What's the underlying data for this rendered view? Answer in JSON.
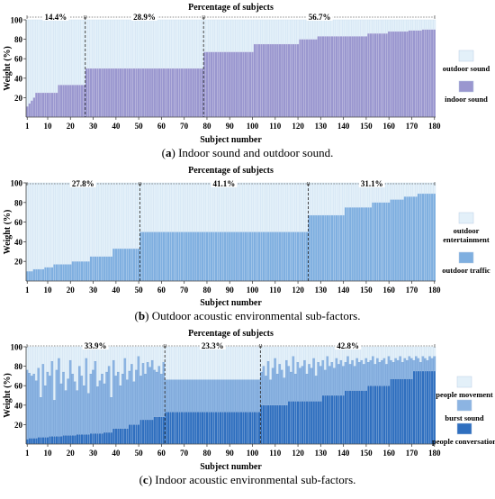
{
  "chart_data": [
    {
      "type": "bar",
      "stacked": true,
      "panel": "a",
      "caption_letter": "a",
      "caption_text": " Indoor sound and outdoor sound.",
      "title": "Percentage of subjects",
      "xlabel": "Subject number",
      "ylabel": "Weight (%)",
      "xlim": [
        1,
        180
      ],
      "ylim": [
        0,
        100
      ],
      "xticks": [
        1,
        10,
        20,
        30,
        40,
        50,
        60,
        70,
        80,
        90,
        100,
        110,
        120,
        130,
        140,
        150,
        160,
        170,
        180
      ],
      "yticks": [
        20,
        40,
        60,
        80,
        100
      ],
      "groups": [
        {
          "label": "14.4%",
          "start": 1,
          "end": 26
        },
        {
          "label": "28.9%",
          "start": 27,
          "end": 78
        },
        {
          "label": "56.7%",
          "start": 79,
          "end": 180
        }
      ],
      "series": [
        {
          "name": "outdoor sound",
          "color": "#e3f0f9",
          "role": "remainder"
        },
        {
          "name": "indoor sound",
          "color": "#9a97cf",
          "role": "base",
          "segments": [
            [
              1,
              1,
              11
            ],
            [
              2,
              2,
              14
            ],
            [
              3,
              3,
              17
            ],
            [
              4,
              4,
              20
            ],
            [
              5,
              10,
              25
            ],
            [
              11,
              14,
              25
            ],
            [
              15,
              26,
              33
            ],
            [
              27,
              78,
              50
            ],
            [
              79,
              100,
              67
            ],
            [
              101,
              120,
              75
            ],
            [
              121,
              128,
              80
            ],
            [
              129,
              134,
              83
            ],
            [
              135,
              150,
              83
            ],
            [
              151,
              159,
              86
            ],
            [
              160,
              168,
              88
            ],
            [
              169,
              174,
              89
            ],
            [
              175,
              180,
              90
            ]
          ]
        }
      ]
    },
    {
      "type": "bar",
      "stacked": true,
      "panel": "b",
      "caption_letter": "b",
      "caption_text": " Outdoor acoustic environmental sub-factors.",
      "title": "Percentage of subjects",
      "xlabel": "Subject number",
      "ylabel": "Weight (%)",
      "xlim": [
        1,
        180
      ],
      "ylim": [
        0,
        100
      ],
      "xticks": [
        1,
        10,
        20,
        30,
        40,
        50,
        60,
        70,
        80,
        90,
        100,
        110,
        120,
        130,
        140,
        150,
        160,
        170,
        180
      ],
      "yticks": [
        20,
        40,
        60,
        80,
        100
      ],
      "groups": [
        {
          "label": "27.8%",
          "start": 1,
          "end": 50
        },
        {
          "label": "41.1%",
          "start": 51,
          "end": 124
        },
        {
          "label": "31.1%",
          "start": 125,
          "end": 180
        }
      ],
      "series": [
        {
          "name": "outdoor entertainment",
          "color": "#e3f0f9",
          "role": "remainder"
        },
        {
          "name": "outdoor traffic",
          "color": "#7fafe0",
          "role": "base",
          "segments": [
            [
              1,
              3,
              10
            ],
            [
              4,
              8,
              12
            ],
            [
              9,
              12,
              14
            ],
            [
              13,
              20,
              17
            ],
            [
              21,
              28,
              20
            ],
            [
              29,
              38,
              25
            ],
            [
              39,
              50,
              33
            ],
            [
              51,
              124,
              50
            ],
            [
              125,
              140,
              67
            ],
            [
              141,
              152,
              75
            ],
            [
              153,
              160,
              80
            ],
            [
              161,
              166,
              83
            ],
            [
              167,
              172,
              86
            ],
            [
              173,
              180,
              89
            ]
          ]
        }
      ]
    },
    {
      "type": "bar",
      "stacked": true,
      "panel": "c",
      "caption_letter": "c",
      "caption_text": " Indoor acoustic environmental sub-factors.",
      "title": "Percentage of subjects",
      "xlabel": "Subject number",
      "ylabel": "Weight (%)",
      "xlim": [
        1,
        180
      ],
      "ylim": [
        0,
        100
      ],
      "xticks": [
        1,
        10,
        20,
        30,
        40,
        50,
        60,
        70,
        80,
        90,
        100,
        110,
        120,
        130,
        140,
        150,
        160,
        170,
        180
      ],
      "yticks": [
        20,
        40,
        60,
        80,
        100
      ],
      "groups": [
        {
          "label": "33.9%",
          "start": 1,
          "end": 61
        },
        {
          "label": "23.3%",
          "start": 62,
          "end": 103
        },
        {
          "label": "42.8%",
          "start": 104,
          "end": 180
        }
      ],
      "series": [
        {
          "name": "people movement",
          "color": "#e3f0f9",
          "role": "remainder"
        },
        {
          "name": "burst sound",
          "color": "#8cb4e2",
          "role": "middle"
        },
        {
          "name": "people conversation",
          "color": "#2f6fbf",
          "role": "base"
        }
      ],
      "base_segments": [
        [
          1,
          1,
          5
        ],
        [
          2,
          5,
          6
        ],
        [
          6,
          10,
          7
        ],
        [
          11,
          16,
          8
        ],
        [
          17,
          22,
          9
        ],
        [
          23,
          28,
          10
        ],
        [
          29,
          34,
          11
        ],
        [
          35,
          38,
          12
        ],
        [
          39,
          45,
          16
        ],
        [
          46,
          50,
          20
        ],
        [
          51,
          56,
          25
        ],
        [
          57,
          61,
          28
        ],
        [
          62,
          103,
          33
        ],
        [
          104,
          115,
          40
        ],
        [
          116,
          130,
          44
        ],
        [
          131,
          140,
          50
        ],
        [
          141,
          150,
          55
        ],
        [
          151,
          160,
          60
        ],
        [
          161,
          170,
          67
        ],
        [
          171,
          180,
          75
        ]
      ],
      "top_values": [
        76,
        73,
        70,
        72,
        65,
        78,
        48,
        82,
        60,
        74,
        70,
        85,
        45,
        76,
        88,
        62,
        74,
        55,
        67,
        86,
        72,
        64,
        55,
        80,
        70,
        60,
        88,
        52,
        72,
        76,
        85,
        59,
        65,
        72,
        62,
        74,
        80,
        48,
        86,
        70,
        74,
        60,
        72,
        88,
        66,
        75,
        82,
        64,
        76,
        90,
        70,
        83,
        72,
        84,
        79,
        86,
        76,
        74,
        80,
        72,
        84,
        66,
        66,
        66,
        66,
        66,
        66,
        66,
        66,
        66,
        66,
        66,
        66,
        66,
        66,
        66,
        66,
        66,
        66,
        66,
        66,
        66,
        66,
        66,
        66,
        66,
        66,
        66,
        66,
        66,
        66,
        66,
        66,
        66,
        66,
        66,
        66,
        66,
        66,
        66,
        66,
        66,
        66,
        74,
        80,
        70,
        85,
        66,
        78,
        88,
        72,
        82,
        76,
        68,
        86,
        80,
        74,
        90,
        72,
        84,
        78,
        80,
        86,
        72,
        82,
        78,
        88,
        70,
        84,
        80,
        86,
        76,
        90,
        80,
        84,
        78,
        88,
        82,
        86,
        80,
        84,
        90,
        82,
        86,
        80,
        88,
        84,
        86,
        82,
        88,
        84,
        86,
        90,
        82,
        88,
        84,
        86,
        88,
        82,
        90,
        86,
        84,
        88,
        86,
        90,
        84,
        88,
        86,
        90,
        88,
        86,
        90,
        88,
        84,
        90,
        88,
        86,
        90,
        88,
        90
      ]
    }
  ]
}
